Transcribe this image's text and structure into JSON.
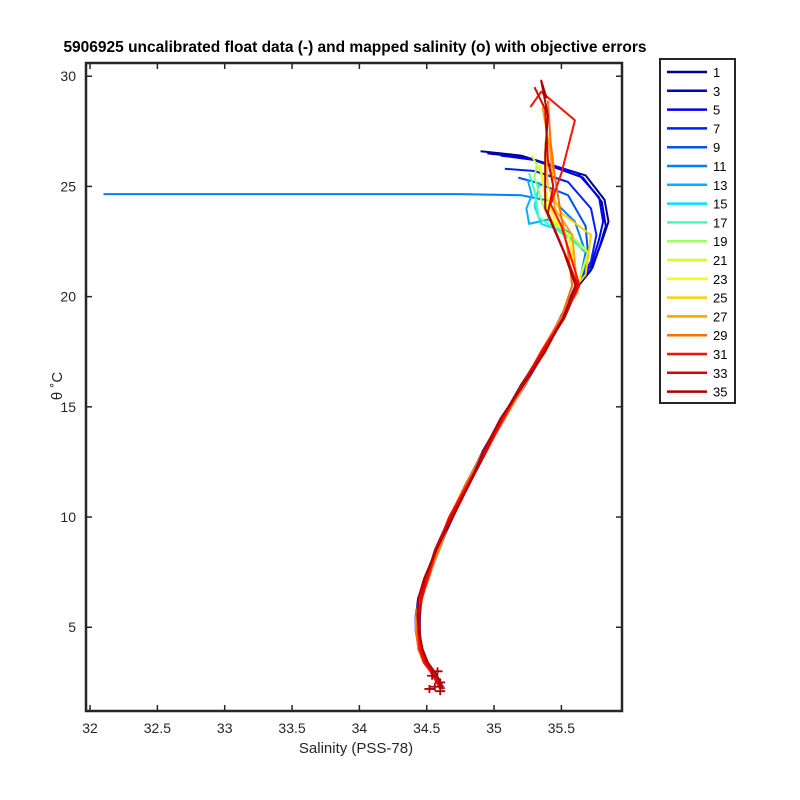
{
  "chart_data": {
    "type": "line",
    "title": "5906925 uncalibrated float data (-) and mapped salinity (o) with objective errors",
    "xlabel": "Salinity (PSS-78)",
    "ylabel": "θ ˚C",
    "xlim": [
      31.97,
      35.95
    ],
    "ylim": [
      1.2,
      30.6
    ],
    "xticks": [
      "32",
      "32.5",
      "33",
      "33.5",
      "34",
      "34.5",
      "35",
      "35.5"
    ],
    "xtick_values": [
      32,
      32.5,
      33,
      33.5,
      34,
      34.5,
      35,
      35.5
    ],
    "yticks": [
      "5",
      "10",
      "15",
      "20",
      "25",
      "30"
    ],
    "ytick_values": [
      5,
      10,
      15,
      20,
      25,
      30
    ],
    "grid": false,
    "legend_position": "outside-right",
    "colors": {
      "1": "#00008f",
      "3": "#0000bf",
      "5": "#0000ef",
      "7": "#0020ff",
      "9": "#0050ff",
      "11": "#0080ff",
      "13": "#00b0ff",
      "15": "#00e0ff",
      "17": "#40ffbf",
      "19": "#9fff60",
      "21": "#d0ff30",
      "23": "#ffff00",
      "25": "#ffcf00",
      "27": "#ff9f00",
      "29": "#ff7000",
      "31": "#ff1000",
      "33": "#df0000",
      "35": "#af0000"
    },
    "legend": [
      "1",
      "3",
      "5",
      "7",
      "9",
      "11",
      "13",
      "15",
      "17",
      "19",
      "21",
      "23",
      "25",
      "27",
      "29",
      "31",
      "33",
      "35"
    ],
    "deep_profile": [
      [
        34.62,
        2.2
      ],
      [
        34.58,
        2.6
      ],
      [
        34.54,
        3.0
      ],
      [
        34.49,
        3.4
      ],
      [
        34.45,
        4.0
      ],
      [
        34.43,
        4.8
      ],
      [
        34.43,
        5.5
      ],
      [
        34.45,
        6.3
      ],
      [
        34.5,
        7.2
      ],
      [
        34.58,
        8.5
      ],
      [
        34.68,
        10.0
      ],
      [
        34.8,
        11.5
      ],
      [
        34.93,
        13.0
      ],
      [
        35.07,
        14.5
      ],
      [
        35.22,
        16.0
      ],
      [
        35.36,
        17.5
      ],
      [
        35.5,
        19.0
      ],
      [
        35.62,
        20.5
      ],
      [
        35.7,
        22.0
      ]
    ],
    "series": [
      {
        "name": "1",
        "values": [
          [
            35.72,
            21.2
          ],
          [
            35.8,
            22.5
          ],
          [
            35.85,
            23.4
          ],
          [
            35.82,
            24.4
          ],
          [
            35.68,
            25.5
          ],
          [
            35.2,
            26.4
          ],
          [
            34.9,
            26.6
          ]
        ]
      },
      {
        "name": "3",
        "values": [
          [
            35.73,
            21.3
          ],
          [
            35.79,
            22.4
          ],
          [
            35.83,
            23.2
          ],
          [
            35.8,
            24.3
          ],
          [
            35.66,
            25.4
          ],
          [
            35.25,
            26.3
          ],
          [
            34.95,
            26.5
          ]
        ]
      },
      {
        "name": "5",
        "values": [
          [
            35.72,
            21.4
          ],
          [
            35.78,
            22.6
          ],
          [
            35.81,
            23.4
          ],
          [
            35.78,
            24.5
          ],
          [
            35.62,
            25.6
          ],
          [
            35.3,
            26.2
          ],
          [
            35.05,
            26.4
          ]
        ]
      },
      {
        "name": "7",
        "values": [
          [
            35.72,
            21.6
          ],
          [
            35.76,
            22.8
          ],
          [
            35.72,
            24.0
          ],
          [
            35.55,
            25.2
          ],
          [
            35.3,
            25.7
          ],
          [
            35.08,
            25.8
          ]
        ]
      },
      {
        "name": "9",
        "values": [
          [
            35.7,
            21.8
          ],
          [
            35.68,
            23.2
          ],
          [
            35.55,
            24.6
          ],
          [
            35.3,
            25.2
          ],
          [
            35.18,
            25.4
          ]
        ]
      },
      {
        "name": "11",
        "values": [
          [
            35.68,
            22.0
          ],
          [
            35.6,
            23.4
          ],
          [
            35.45,
            24.3
          ],
          [
            35.2,
            24.6
          ],
          [
            34.75,
            24.65
          ],
          [
            32.1,
            24.65
          ]
        ]
      },
      {
        "name": "13",
        "values": [
          [
            35.66,
            22.1
          ],
          [
            35.56,
            22.9
          ],
          [
            35.4,
            23.5
          ],
          [
            35.26,
            23.3
          ],
          [
            35.24,
            24.0
          ],
          [
            35.28,
            24.6
          ],
          [
            35.25,
            25.3
          ]
        ]
      },
      {
        "name": "15",
        "values": [
          [
            35.65,
            22.2
          ],
          [
            35.5,
            23.0
          ],
          [
            35.35,
            23.3
          ],
          [
            35.3,
            24.1
          ],
          [
            35.34,
            25.2
          ]
        ]
      },
      {
        "name": "17",
        "values": [
          [
            35.63,
            22.3
          ],
          [
            35.45,
            23.1
          ],
          [
            35.33,
            23.6
          ],
          [
            35.3,
            24.8
          ],
          [
            35.26,
            25.6
          ]
        ]
      },
      {
        "name": "19",
        "values": [
          [
            35.62,
            22.5
          ],
          [
            35.42,
            23.4
          ],
          [
            35.36,
            24.2
          ],
          [
            35.3,
            25.4
          ],
          [
            35.32,
            26.1
          ]
        ]
      },
      {
        "name": "21",
        "values": [
          [
            35.6,
            22.6
          ],
          [
            35.4,
            23.6
          ],
          [
            35.38,
            24.5
          ],
          [
            35.35,
            25.6
          ],
          [
            35.28,
            26.4
          ]
        ]
      },
      {
        "name": "23",
        "values": [
          [
            35.6,
            21.5
          ],
          [
            35.55,
            22.8
          ],
          [
            35.45,
            23.5
          ],
          [
            35.38,
            24.8
          ],
          [
            35.34,
            26.0
          ]
        ]
      },
      {
        "name": "25",
        "values": [
          [
            35.68,
            21.0
          ],
          [
            35.72,
            22.8
          ],
          [
            35.5,
            23.8
          ],
          [
            35.4,
            25.0
          ],
          [
            35.38,
            27.0
          ]
        ]
      },
      {
        "name": "27",
        "values": [
          [
            35.62,
            20.2
          ],
          [
            35.58,
            22.8
          ],
          [
            35.45,
            24.0
          ],
          [
            35.42,
            26.5
          ],
          [
            35.36,
            28.6
          ]
        ]
      },
      {
        "name": "29",
        "values": [
          [
            35.58,
            20.5
          ],
          [
            35.55,
            22.0
          ],
          [
            35.5,
            23.6
          ],
          [
            35.45,
            25.5
          ],
          [
            35.42,
            27.0
          ],
          [
            35.4,
            28.9
          ]
        ]
      },
      {
        "name": "31",
        "values": [
          [
            35.6,
            21.2
          ],
          [
            35.5,
            23.2
          ],
          [
            35.42,
            24.2
          ],
          [
            35.5,
            25.6
          ],
          [
            35.6,
            28.0
          ],
          [
            35.35,
            29.3
          ],
          [
            35.27,
            28.6
          ]
        ]
      },
      {
        "name": "33",
        "values": [
          [
            35.55,
            21.6
          ],
          [
            35.4,
            23.8
          ],
          [
            35.44,
            25.0
          ],
          [
            35.4,
            26.2
          ],
          [
            35.38,
            28.5
          ],
          [
            35.3,
            29.5
          ]
        ]
      },
      {
        "name": "35",
        "values": [
          [
            35.52,
            22.0
          ],
          [
            35.38,
            24.0
          ],
          [
            35.38,
            25.2
          ],
          [
            35.38,
            26.5
          ],
          [
            35.4,
            28.2
          ],
          [
            35.35,
            29.8
          ],
          [
            35.39,
            29.0
          ]
        ]
      }
    ]
  }
}
